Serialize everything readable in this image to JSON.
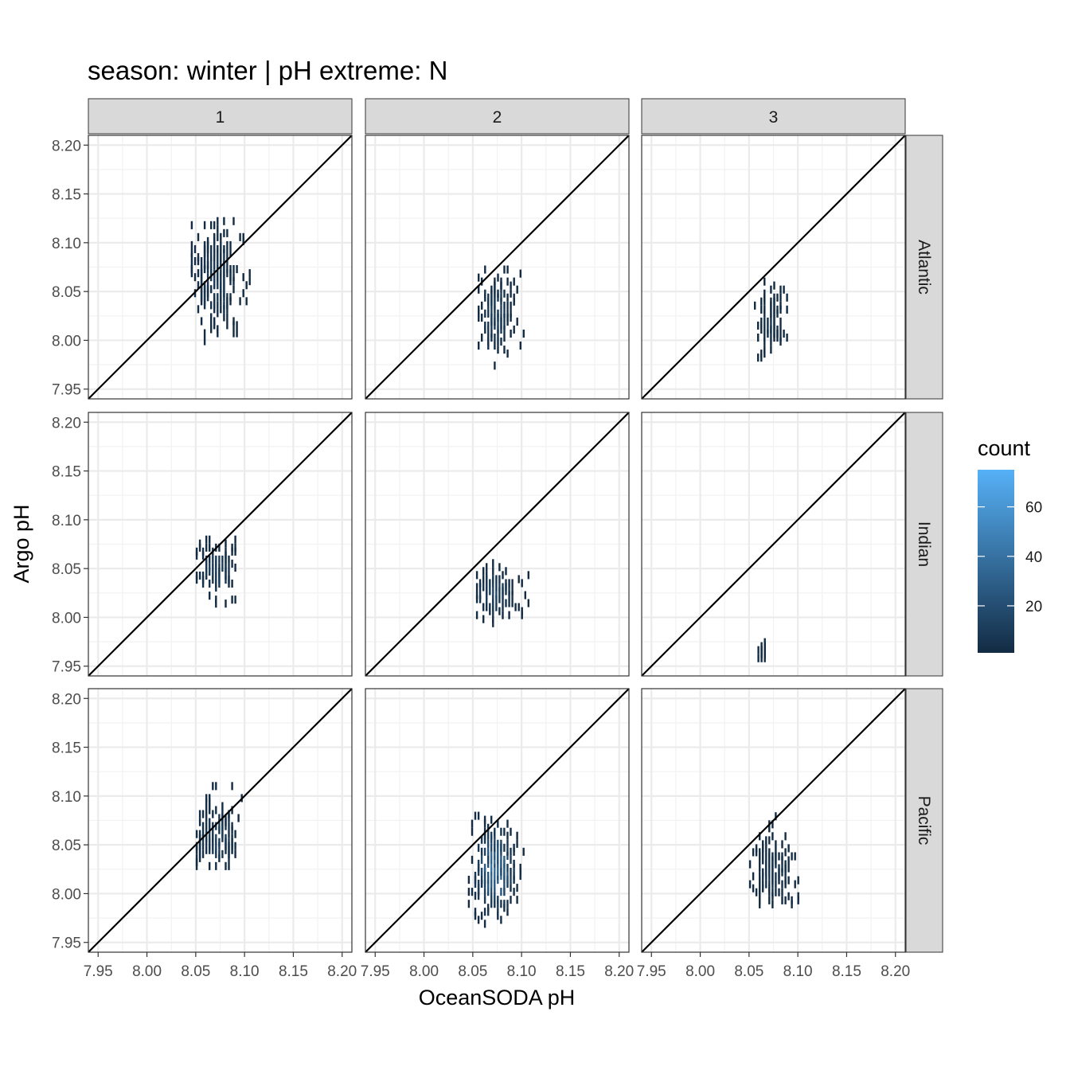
{
  "chart_data": {
    "type": "heatmap",
    "title": "season: winter | pH extreme: N",
    "xlabel": "OceanSODA pH",
    "ylabel": "Argo pH",
    "xlim": [
      7.94,
      8.21
    ],
    "ylim": [
      7.94,
      8.21
    ],
    "x_ticks": [
      "7.95",
      "8.00",
      "8.05",
      "8.10",
      "8.15",
      "8.20"
    ],
    "y_ticks": [
      "7.95",
      "8.00",
      "8.05",
      "8.10",
      "8.15",
      "8.20"
    ],
    "column_facets": [
      "1",
      "2",
      "3"
    ],
    "row_facets": [
      "Atlantic",
      "Indian",
      "Pacific"
    ],
    "reference_line": "y = x",
    "grid": true,
    "legend": {
      "title": "count",
      "position": "right",
      "ticks": [
        "20",
        "40",
        "60"
      ],
      "range": [
        1,
        75
      ],
      "low_color": "#132B43",
      "high_color": "#56B1F7"
    },
    "panels": [
      {
        "row": "Atlantic",
        "col": "1",
        "x_range": [
          8.045,
          8.105
        ],
        "y_range": [
          7.995,
          8.12
        ],
        "x_center": 8.07,
        "y_center": 8.06,
        "max_count": 12
      },
      {
        "row": "Atlantic",
        "col": "2",
        "x_range": [
          8.055,
          8.1
        ],
        "y_range": [
          7.97,
          8.07
        ],
        "x_center": 8.073,
        "y_center": 8.025,
        "max_count": 16
      },
      {
        "row": "Atlantic",
        "col": "3",
        "x_range": [
          8.055,
          8.09
        ],
        "y_range": [
          7.97,
          8.06
        ],
        "x_center": 8.072,
        "y_center": 8.015,
        "max_count": 7
      },
      {
        "row": "Indian",
        "col": "1",
        "x_range": [
          8.05,
          8.1
        ],
        "y_range": [
          8.01,
          8.08
        ],
        "x_center": 8.07,
        "y_center": 8.045,
        "max_count": 14
      },
      {
        "row": "Indian",
        "col": "2",
        "x_range": [
          8.05,
          8.105
        ],
        "y_range": [
          7.99,
          8.05
        ],
        "x_center": 8.072,
        "y_center": 8.02,
        "max_count": 18
      },
      {
        "row": "Indian",
        "col": "3",
        "x_range": [
          8.052,
          8.072
        ],
        "y_range": [
          7.95,
          7.975
        ],
        "x_center": 8.062,
        "y_center": 7.96,
        "max_count": 2
      },
      {
        "row": "Pacific",
        "col": "1",
        "x_range": [
          8.05,
          8.1
        ],
        "y_range": [
          8.02,
          8.105
        ],
        "x_center": 8.07,
        "y_center": 8.055,
        "max_count": 14
      },
      {
        "row": "Pacific",
        "col": "2",
        "x_range": [
          8.045,
          8.1
        ],
        "y_range": [
          7.965,
          8.08
        ],
        "x_center": 8.072,
        "y_center": 8.02,
        "max_count": 45
      },
      {
        "row": "Pacific",
        "col": "3",
        "x_range": [
          8.05,
          8.1
        ],
        "y_range": [
          7.985,
          8.075
        ],
        "x_center": 8.072,
        "y_center": 8.02,
        "max_count": 9
      }
    ]
  }
}
